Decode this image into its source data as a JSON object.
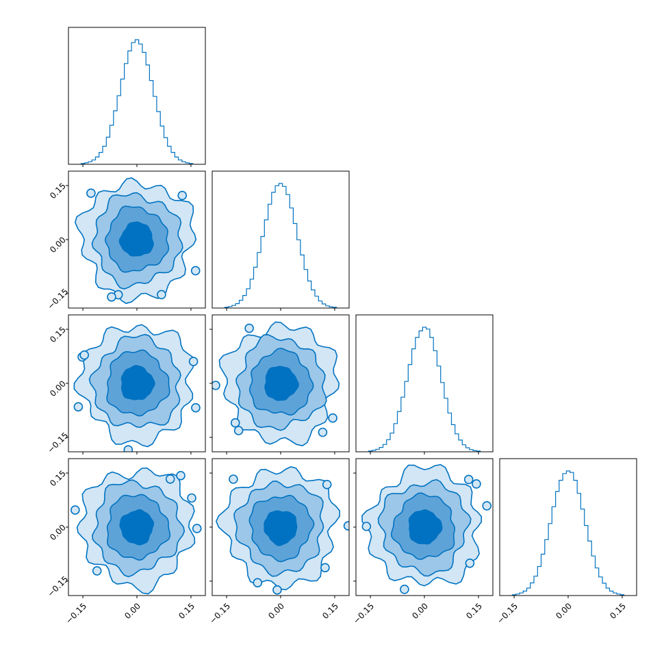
{
  "chart_data": {
    "type": "corner",
    "color": "#0072c1",
    "fill_colors": [
      "#d2e6f5",
      "#9cc7e8",
      "#5ea3d8",
      "#0072c1"
    ],
    "tick_values": [
      -0.15,
      0.0,
      0.15
    ],
    "tick_labels": [
      "−0.15",
      "0.00",
      "0.15"
    ],
    "range": [
      -0.19,
      0.19
    ],
    "grid": false,
    "diagonal_histograms": [
      {
        "x": [
          -0.15,
          -0.14,
          -0.13,
          -0.12,
          -0.11,
          -0.1,
          -0.09,
          -0.08,
          -0.07,
          -0.06,
          -0.05,
          -0.04,
          -0.03,
          -0.02,
          -0.01,
          0.0,
          0.01,
          0.02,
          0.03,
          0.04,
          0.05,
          0.06,
          0.07,
          0.08,
          0.09,
          0.1,
          0.11,
          0.12,
          0.13,
          0.14,
          0.15
        ],
        "counts": [
          2,
          4,
          7,
          12,
          20,
          33,
          50,
          75,
          108,
          148,
          190,
          236,
          279,
          314,
          337,
          345,
          333,
          310,
          275,
          232,
          188,
          146,
          106,
          74,
          50,
          33,
          20,
          12,
          7,
          4,
          2
        ]
      },
      {
        "x": [
          -0.15,
          -0.14,
          -0.13,
          -0.12,
          -0.11,
          -0.1,
          -0.09,
          -0.08,
          -0.07,
          -0.06,
          -0.05,
          -0.04,
          -0.03,
          -0.02,
          -0.01,
          0.0,
          0.01,
          0.02,
          0.03,
          0.04,
          0.05,
          0.06,
          0.07,
          0.08,
          0.09,
          0.1,
          0.11,
          0.12,
          0.13,
          0.14,
          0.15
        ],
        "counts": [
          2,
          4,
          7,
          12,
          21,
          34,
          52,
          78,
          110,
          150,
          193,
          238,
          280,
          312,
          330,
          336,
          328,
          306,
          270,
          228,
          184,
          143,
          104,
          73,
          49,
          32,
          19,
          11,
          6,
          3,
          2
        ]
      },
      {
        "x": [
          -0.15,
          -0.14,
          -0.13,
          -0.12,
          -0.11,
          -0.1,
          -0.09,
          -0.08,
          -0.07,
          -0.06,
          -0.05,
          -0.04,
          -0.03,
          -0.02,
          -0.01,
          0.0,
          0.01,
          0.02,
          0.03,
          0.04,
          0.05,
          0.06,
          0.07,
          0.08,
          0.09,
          0.1,
          0.11,
          0.12,
          0.13,
          0.14,
          0.15
        ],
        "counts": [
          2,
          4,
          7,
          12,
          20,
          33,
          51,
          77,
          110,
          149,
          192,
          238,
          281,
          312,
          330,
          340,
          335,
          312,
          276,
          234,
          189,
          146,
          106,
          74,
          49,
          32,
          19,
          11,
          6,
          3,
          2
        ]
      },
      {
        "x": [
          -0.15,
          -0.14,
          -0.13,
          -0.12,
          -0.11,
          -0.1,
          -0.09,
          -0.08,
          -0.07,
          -0.06,
          -0.05,
          -0.04,
          -0.03,
          -0.02,
          -0.01,
          0.0,
          0.01,
          0.02,
          0.03,
          0.04,
          0.05,
          0.06,
          0.07,
          0.08,
          0.09,
          0.1,
          0.11,
          0.12,
          0.13,
          0.14,
          0.15
        ],
        "counts": [
          2,
          4,
          7,
          12,
          20,
          34,
          52,
          78,
          111,
          150,
          193,
          238,
          279,
          309,
          327,
          334,
          330,
          309,
          274,
          232,
          188,
          146,
          106,
          74,
          50,
          33,
          20,
          12,
          7,
          4,
          2
        ]
      }
    ],
    "contour_radii": [
      0.045,
      0.085,
      0.12,
      0.155
    ]
  }
}
